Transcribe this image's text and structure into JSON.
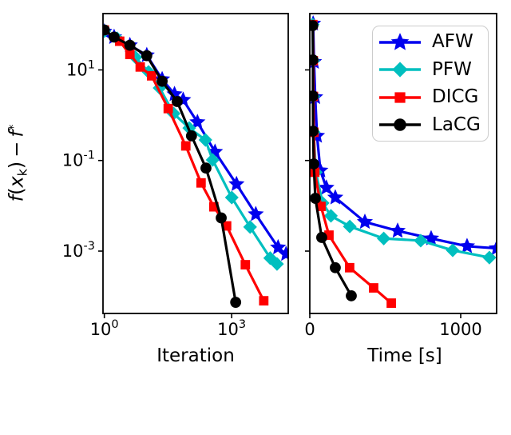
{
  "figure": {
    "background": "#ffffff",
    "spine_color": "#000000",
    "text_color": "#000000"
  },
  "legend": {
    "position": "upper right",
    "entries": [
      {
        "label": "AFW",
        "color": "#0000ee",
        "marker": "star"
      },
      {
        "label": "PFW",
        "color": "#00bfbf",
        "marker": "diamond"
      },
      {
        "label": "DICG",
        "color": "#ff0000",
        "marker": "square"
      },
      {
        "label": "LaCG",
        "color": "#000000",
        "marker": "circle"
      }
    ]
  },
  "chart_data": [
    {
      "type": "line",
      "title": "",
      "xlabel": "Iteration",
      "ylabel": "f(xₖ) − f*",
      "ylabel_parts": {
        "f1": "f",
        "open": "(",
        "x": "x",
        "sub_k": "k",
        "close": ")",
        "minus": "−",
        "f2": "f",
        "sup_star": "*"
      },
      "xscale": "log",
      "yscale": "log",
      "xlim": [
        0.93,
        21500
      ],
      "ylim": [
        4.2e-05,
        175
      ],
      "grid": false,
      "xticks": [
        {
          "value": 1,
          "label": "10⁰"
        },
        {
          "value": 1000,
          "label": "10³"
        }
      ],
      "yticks": [
        {
          "value": 10,
          "label": "10¹"
        },
        {
          "value": 0.1,
          "label": "10⁻¹"
        },
        {
          "value": 0.001,
          "label": "10⁻³"
        }
      ],
      "series": [
        {
          "name": "AFW",
          "color": "#0000ee",
          "marker": "star",
          "points": [
            [
              1,
              70
            ],
            [
              1.7,
              53
            ],
            [
              4,
              35
            ],
            [
              10,
              21
            ],
            [
              23,
              6.2
            ],
            [
              45,
              2.9
            ],
            [
              72,
              2.17
            ],
            [
              156,
              0.7
            ],
            [
              405,
              0.155
            ],
            [
              1300,
              0.03
            ],
            [
              3700,
              0.0065
            ],
            [
              12400,
              0.0012
            ],
            [
              19100,
              0.00086
            ]
          ]
        },
        {
          "name": "PFW",
          "color": "#00bfbf",
          "marker": "diamond",
          "points": [
            [
              1,
              72
            ],
            [
              2,
              50
            ],
            [
              5.4,
              19
            ],
            [
              11,
              9
            ],
            [
              20,
              4.0
            ],
            [
              43,
              1.09
            ],
            [
              100,
              0.52
            ],
            [
              241,
              0.284
            ],
            [
              356,
              0.103
            ],
            [
              1005,
              0.0152
            ],
            [
              2717,
              0.0034
            ],
            [
              8075,
              0.0007
            ],
            [
              11700,
              0.00052
            ]
          ]
        },
        {
          "name": "DICG",
          "color": "#ff0000",
          "marker": "square",
          "points": [
            [
              1,
              76
            ],
            [
              2.3,
              43
            ],
            [
              4,
              22
            ],
            [
              7,
              11.6
            ],
            [
              13,
              7.4
            ],
            [
              32,
              1.4
            ],
            [
              83,
              0.21
            ],
            [
              190,
              0.032
            ],
            [
              380,
              0.0095
            ],
            [
              760,
              0.0036
            ],
            [
              2100,
              0.0005
            ],
            [
              5700,
              8e-05
            ]
          ]
        },
        {
          "name": "LaCG",
          "color": "#000000",
          "marker": "circle",
          "points": [
            [
              1,
              76
            ],
            [
              1.7,
              53
            ],
            [
              4,
              35
            ],
            [
              10,
              20.6
            ],
            [
              23,
              5.6
            ],
            [
              52,
              2.0
            ],
            [
              113,
              0.35
            ],
            [
              248,
              0.068
            ],
            [
              567,
              0.0054
            ],
            [
              1242,
              7.4e-05
            ]
          ]
        }
      ]
    },
    {
      "type": "line",
      "title": "",
      "xlabel": "Time [s]",
      "ylabel": "",
      "xscale": "linear",
      "yscale": "log",
      "xlim": [
        0,
        1238
      ],
      "ylim": [
        4.2e-05,
        175
      ],
      "grid": false,
      "xticks": [
        {
          "value": 0,
          "label": "0"
        },
        {
          "value": 1000,
          "label": "1000"
        }
      ],
      "yticks": [
        {
          "value": 10,
          "label": ""
        },
        {
          "value": 0.1,
          "label": ""
        },
        {
          "value": 0.001,
          "label": ""
        }
      ],
      "series": [
        {
          "name": "AFW",
          "color": "#0000ee",
          "marker": "star",
          "points": [
            [
              22,
              105
            ],
            [
              28,
              15
            ],
            [
              36,
              2.5
            ],
            [
              48,
              0.35
            ],
            [
              70,
              0.06
            ],
            [
              110,
              0.025
            ],
            [
              169,
              0.0152
            ],
            [
              365,
              0.0044
            ],
            [
              582,
              0.0028
            ],
            [
              804,
              0.0019
            ],
            [
              1042,
              0.00128
            ],
            [
              1238,
              0.00115
            ]
          ]
        },
        {
          "name": "PFW",
          "color": "#00bfbf",
          "marker": "diamond",
          "points": [
            [
              19,
              100
            ],
            [
              22,
              16
            ],
            [
              23,
              2.6
            ],
            [
              26,
              0.42
            ],
            [
              40,
              0.055
            ],
            [
              85,
              0.0115
            ],
            [
              140,
              0.006
            ],
            [
              265,
              0.0035
            ],
            [
              490,
              0.0019
            ],
            [
              735,
              0.0017
            ],
            [
              947,
              0.00104
            ],
            [
              1190,
              0.00072
            ]
          ]
        },
        {
          "name": "DICG",
          "color": "#ff0000",
          "marker": "square",
          "points": [
            [
              20,
              100
            ],
            [
              23,
              16
            ],
            [
              24,
              2.6
            ],
            [
              27,
              0.42
            ],
            [
              33,
              0.055
            ],
            [
              74,
              0.0097
            ],
            [
              127,
              0.00225
            ],
            [
              264,
              0.00043
            ],
            [
              423,
              0.000154
            ],
            [
              540,
              7.1e-05
            ]
          ]
        },
        {
          "name": "LaCG",
          "color": "#000000",
          "marker": "circle",
          "points": [
            [
              20,
              95
            ],
            [
              21,
              16.6
            ],
            [
              21,
              2.66
            ],
            [
              22,
              0.445
            ],
            [
              26,
              0.084
            ],
            [
              37,
              0.0146
            ],
            [
              79,
              0.002
            ],
            [
              169,
              0.00043
            ],
            [
              275,
              0.000103
            ]
          ]
        }
      ]
    }
  ]
}
